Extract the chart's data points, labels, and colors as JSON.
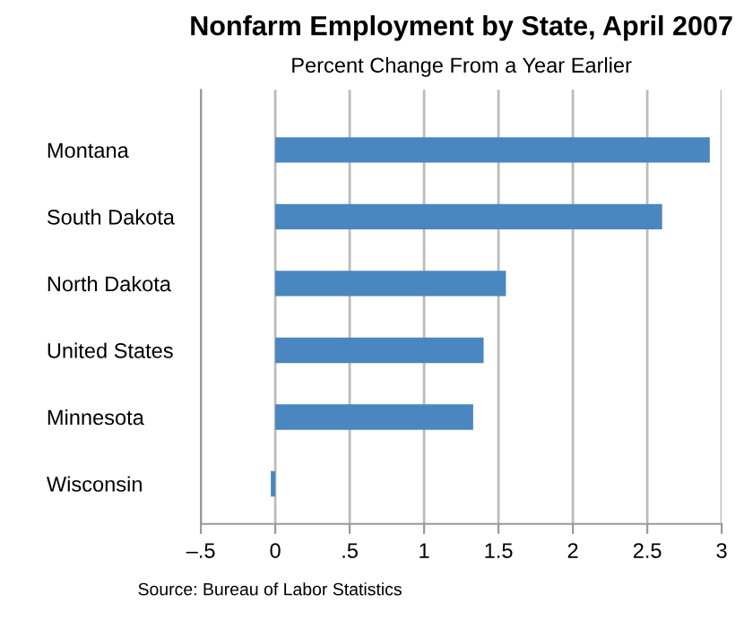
{
  "chart_data": {
    "type": "bar",
    "orientation": "horizontal",
    "title": "Nonfarm Employment by State, April 2007",
    "subtitle": "Percent Change From a Year Earlier",
    "categories": [
      "Montana",
      "South Dakota",
      "North Dakota",
      "United States",
      "Minnesota",
      "Wisconsin"
    ],
    "values": [
      2.92,
      2.6,
      1.55,
      1.4,
      1.33,
      -0.03
    ],
    "color": "#4a86bf",
    "xlim": [
      -0.5,
      3
    ],
    "xticks": [
      {
        "value": -0.5,
        "label": "–.5"
      },
      0,
      {
        "value": 0.5,
        "label": ".5"
      },
      1,
      1.5,
      2,
      2.5,
      3
    ],
    "grid": "x",
    "annotations": [
      "Source: Bureau of Labor Statistics"
    ]
  }
}
